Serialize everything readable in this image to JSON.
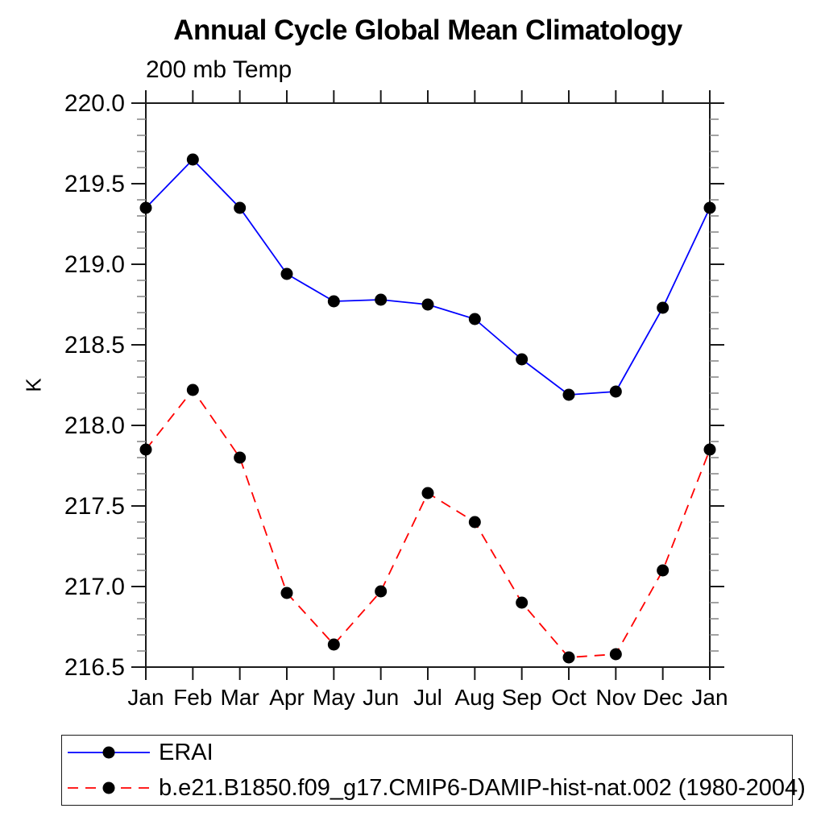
{
  "chart_data": {
    "type": "line",
    "title": "Annual Cycle Global Mean Climatology",
    "subtitle": "200 mb Temp",
    "ylabel": "K",
    "xlabel": "",
    "categories": [
      "Jan",
      "Feb",
      "Mar",
      "Apr",
      "May",
      "Jun",
      "Jul",
      "Aug",
      "Sep",
      "Oct",
      "Nov",
      "Dec",
      "Jan"
    ],
    "ylim": [
      216.5,
      220.0
    ],
    "y_major_step": 0.5,
    "y_minor_step": 0.1,
    "grid": false,
    "legend_position": "bottom-left-box",
    "series": [
      {
        "name": "ERAI",
        "color": "#0000ff",
        "line_style": "solid",
        "marker": "filled-circle",
        "marker_color": "#000000",
        "values": [
          219.35,
          219.65,
          219.35,
          218.94,
          218.77,
          218.78,
          218.75,
          218.66,
          218.41,
          218.19,
          218.21,
          218.73,
          219.35
        ]
      },
      {
        "name": "b.e21.B1850.f09_g17.CMIP6-DAMIP-hist-nat.002 (1980-2004)",
        "color": "#ff0000",
        "line_style": "dashed",
        "marker": "filled-circle",
        "marker_color": "#000000",
        "values": [
          217.85,
          218.22,
          217.8,
          216.96,
          216.64,
          216.97,
          217.58,
          217.4,
          216.9,
          216.56,
          216.58,
          217.1,
          217.85
        ]
      }
    ],
    "colors": {
      "frame": "#1a1a1a",
      "minor_tick": "#8c8c8c",
      "text": "#000000"
    }
  }
}
